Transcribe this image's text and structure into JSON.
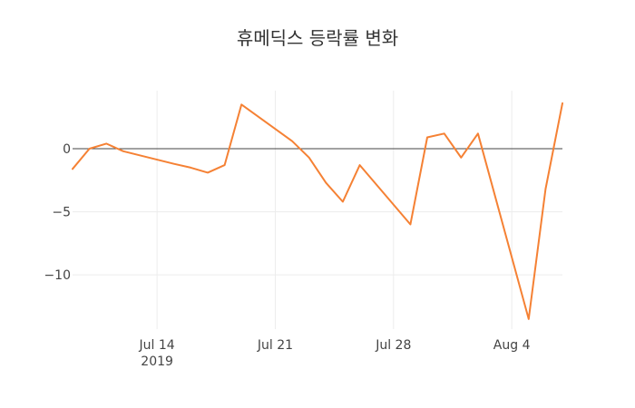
{
  "chart_data": {
    "type": "line",
    "title": "휴메딕스 등락률 변화",
    "xlabel": "",
    "ylabel": "",
    "series_color": "#f58134",
    "x_ticks": [
      {
        "date": "2019-07-14",
        "label": "Jul 14",
        "sublabel": "2019"
      },
      {
        "date": "2019-07-21",
        "label": "Jul 21",
        "sublabel": ""
      },
      {
        "date": "2019-07-28",
        "label": "Jul 28",
        "sublabel": ""
      },
      {
        "date": "2019-08-04",
        "label": "Aug 4",
        "sublabel": ""
      }
    ],
    "y_ticks": [
      {
        "value": 0,
        "label": "0"
      },
      {
        "value": -5,
        "label": "−5"
      },
      {
        "value": -10,
        "label": "−10"
      }
    ],
    "xlim": [
      "2019-07-09",
      "2019-08-06"
    ],
    "ylim": [
      -14.3,
      4.6
    ],
    "points": [
      {
        "x": "2019-07-09",
        "y": -1.6
      },
      {
        "x": "2019-07-10",
        "y": 0.0
      },
      {
        "x": "2019-07-11",
        "y": 0.4
      },
      {
        "x": "2019-07-12",
        "y": -0.2
      },
      {
        "x": "2019-07-15",
        "y": -1.2
      },
      {
        "x": "2019-07-16",
        "y": -1.5
      },
      {
        "x": "2019-07-17",
        "y": -1.9
      },
      {
        "x": "2019-07-18",
        "y": -1.3
      },
      {
        "x": "2019-07-19",
        "y": 3.5
      },
      {
        "x": "2019-07-22",
        "y": 0.6
      },
      {
        "x": "2019-07-23",
        "y": -0.7
      },
      {
        "x": "2019-07-24",
        "y": -2.7
      },
      {
        "x": "2019-07-25",
        "y": -4.2
      },
      {
        "x": "2019-07-26",
        "y": -1.3
      },
      {
        "x": "2019-07-29",
        "y": -6.0
      },
      {
        "x": "2019-07-30",
        "y": 0.9
      },
      {
        "x": "2019-07-31",
        "y": 1.2
      },
      {
        "x": "2019-08-01",
        "y": -0.7
      },
      {
        "x": "2019-08-02",
        "y": 1.2
      },
      {
        "x": "2019-08-05",
        "y": -13.5
      },
      {
        "x": "2019-08-06",
        "y": -3.2
      },
      {
        "x": "2019-08-07",
        "y": 3.6
      }
    ]
  }
}
